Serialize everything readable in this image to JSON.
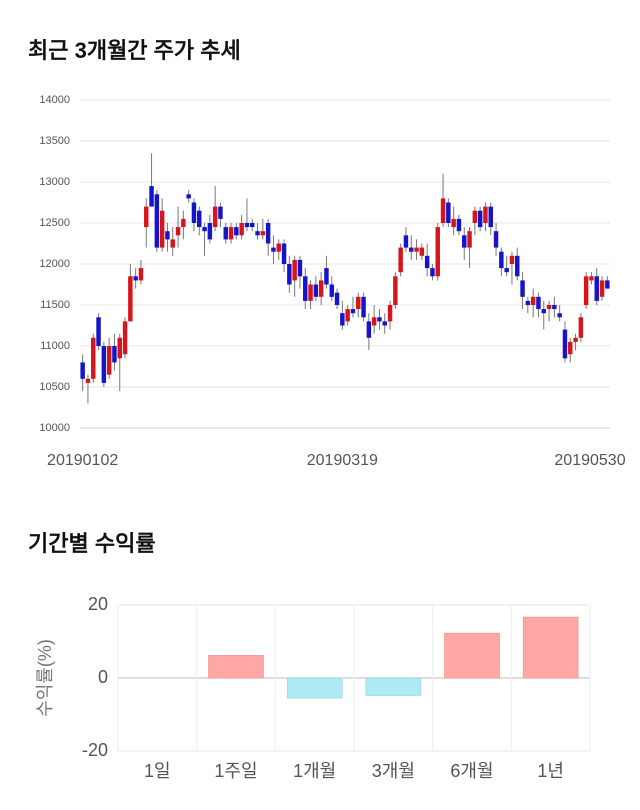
{
  "chart_data": [
    {
      "type": "candlestick",
      "title": "최근 3개월간 주가 추세",
      "categories": [
        "20190102",
        null,
        null,
        null,
        null,
        null,
        null,
        null,
        null,
        null,
        null,
        null,
        null,
        null,
        null,
        null,
        null,
        null,
        null,
        null,
        null,
        null,
        null,
        null,
        null,
        null,
        null,
        null,
        null,
        null,
        null,
        null,
        null,
        null,
        null,
        null,
        null,
        null,
        null,
        null,
        null,
        null,
        null,
        null,
        null,
        null,
        null,
        null,
        null,
        "20190319",
        null,
        null,
        null,
        null,
        null,
        null,
        null,
        null,
        null,
        null,
        null,
        null,
        null,
        null,
        null,
        null,
        null,
        null,
        null,
        null,
        null,
        null,
        null,
        null,
        null,
        null,
        null,
        null,
        null,
        null,
        null,
        null,
        null,
        null,
        null,
        null,
        null,
        null,
        null,
        null,
        null,
        null,
        null,
        null,
        null,
        null,
        null,
        null,
        null,
        "20190530"
      ],
      "open": [
        10800,
        10550,
        10600,
        11350,
        11000,
        10650,
        11000,
        10850,
        10900,
        11300,
        11850,
        11800,
        12450,
        12950,
        12850,
        12200,
        12400,
        12200,
        12350,
        12450,
        12850,
        12750,
        12650,
        12450,
        12500,
        12450,
        12700,
        12450,
        12300,
        12450,
        12350,
        12500,
        12500,
        12400,
        12350,
        12500,
        12200,
        12150,
        12250,
        12000,
        11800,
        12050,
        11850,
        11550,
        11750,
        11600,
        11950,
        11750,
        11650,
        11400,
        11300,
        11450,
        11450,
        11600,
        11300,
        11250,
        11350,
        11300,
        11300,
        11500,
        11900,
        12350,
        12200,
        12150,
        12100,
        12100,
        11950,
        11850,
        12500,
        12750,
        12450,
        12550,
        12350,
        12200,
        12500,
        12650,
        12500,
        12700,
        12400,
        12150,
        11950,
        12000,
        12100,
        11800,
        11550,
        11500,
        11600,
        11450,
        11450,
        11500,
        11400,
        11200,
        10900,
        11050,
        11100,
        11500,
        11800,
        11850,
        11600,
        11800
      ],
      "high": [
        10900,
        10650,
        11150,
        11400,
        11050,
        11100,
        11150,
        11150,
        11350,
        12000,
        11950,
        12050,
        12800,
        13350,
        12900,
        12800,
        12500,
        12450,
        12700,
        12650,
        12900,
        12800,
        12700,
        12500,
        12600,
        12950,
        12750,
        12500,
        12500,
        12500,
        12600,
        12800,
        12550,
        12500,
        12550,
        12550,
        12350,
        12300,
        12300,
        12100,
        12100,
        12100,
        11950,
        11800,
        11850,
        11900,
        12100,
        11850,
        11700,
        11550,
        11500,
        11600,
        11650,
        11650,
        11400,
        11500,
        11450,
        11400,
        11550,
        11900,
        12250,
        12450,
        12350,
        12300,
        12250,
        12250,
        12000,
        12500,
        13100,
        12800,
        12700,
        12600,
        12450,
        12450,
        12700,
        12700,
        12750,
        12750,
        12500,
        12200,
        12100,
        12150,
        12200,
        11900,
        11600,
        11700,
        11650,
        11550,
        11550,
        11600,
        11500,
        11300,
        11100,
        11150,
        11400,
        11900,
        11900,
        11950,
        11850,
        11850
      ],
      "low": [
        10450,
        10300,
        10550,
        10950,
        10500,
        10600,
        10700,
        10450,
        10850,
        11300,
        11700,
        11750,
        12200,
        12700,
        12150,
        12150,
        12150,
        12100,
        12200,
        12300,
        12750,
        12400,
        12350,
        12100,
        12250,
        12400,
        12450,
        12250,
        12250,
        12300,
        12300,
        12400,
        12400,
        12300,
        12300,
        12100,
        12000,
        12050,
        11900,
        11650,
        11600,
        11700,
        11450,
        11450,
        11550,
        11500,
        11700,
        11550,
        11450,
        11200,
        11250,
        11350,
        11350,
        11300,
        10950,
        11150,
        11200,
        11150,
        11200,
        11450,
        11850,
        12150,
        12050,
        12050,
        12050,
        11850,
        11800,
        11800,
        12450,
        12450,
        12350,
        12350,
        12050,
        11950,
        12350,
        12400,
        12400,
        12350,
        12100,
        11850,
        11850,
        11750,
        11800,
        11450,
        11400,
        11350,
        11350,
        11200,
        11300,
        11350,
        11300,
        10800,
        10800,
        10950,
        11050,
        11450,
        11750,
        11500,
        11550,
        11700
      ],
      "close": [
        10600,
        10600,
        11100,
        11000,
        10550,
        11000,
        10800,
        11100,
        11300,
        11850,
        11800,
        11950,
        12700,
        12700,
        12200,
        12650,
        12300,
        12300,
        12450,
        12550,
        12800,
        12500,
        12450,
        12400,
        12300,
        12700,
        12550,
        12300,
        12450,
        12350,
        12500,
        12450,
        12450,
        12350,
        12400,
        12250,
        12150,
        12250,
        12000,
        11750,
        12050,
        11850,
        11550,
        11750,
        11600,
        11800,
        11750,
        11600,
        11500,
        11250,
        11450,
        11400,
        11600,
        11350,
        11100,
        11350,
        11300,
        11250,
        11500,
        11850,
        12200,
        12200,
        12150,
        12200,
        12200,
        11950,
        11850,
        12450,
        12800,
        12500,
        12550,
        12400,
        12200,
        12400,
        12650,
        12450,
        12700,
        12450,
        12200,
        11950,
        11900,
        12100,
        11850,
        11600,
        11500,
        11600,
        11450,
        11400,
        11500,
        11450,
        11350,
        10850,
        11050,
        11100,
        11350,
        11850,
        11850,
        11550,
        11800,
        11700
      ],
      "up_color": "#d7141c",
      "down_color": "#1414c8",
      "ylim": [
        10000,
        14000
      ],
      "yticks": [
        10000,
        10500,
        11000,
        11500,
        12000,
        12500,
        13000,
        13500,
        14000
      ],
      "grid": true
    },
    {
      "type": "bar",
      "title": "기간별 수익률",
      "y_label": "수익률(%)",
      "categories": [
        "1일",
        "1주일",
        "1개월",
        "3개월",
        "6개월",
        "1년"
      ],
      "values": [
        0,
        6.2,
        -5.5,
        -4.8,
        12.3,
        16.7
      ],
      "positive_color": "#ffa6a6",
      "negative_color": "#aeeaf4",
      "ylim": [
        -20,
        20
      ],
      "yticks": [
        -20,
        0,
        20
      ],
      "grid": true
    }
  ]
}
